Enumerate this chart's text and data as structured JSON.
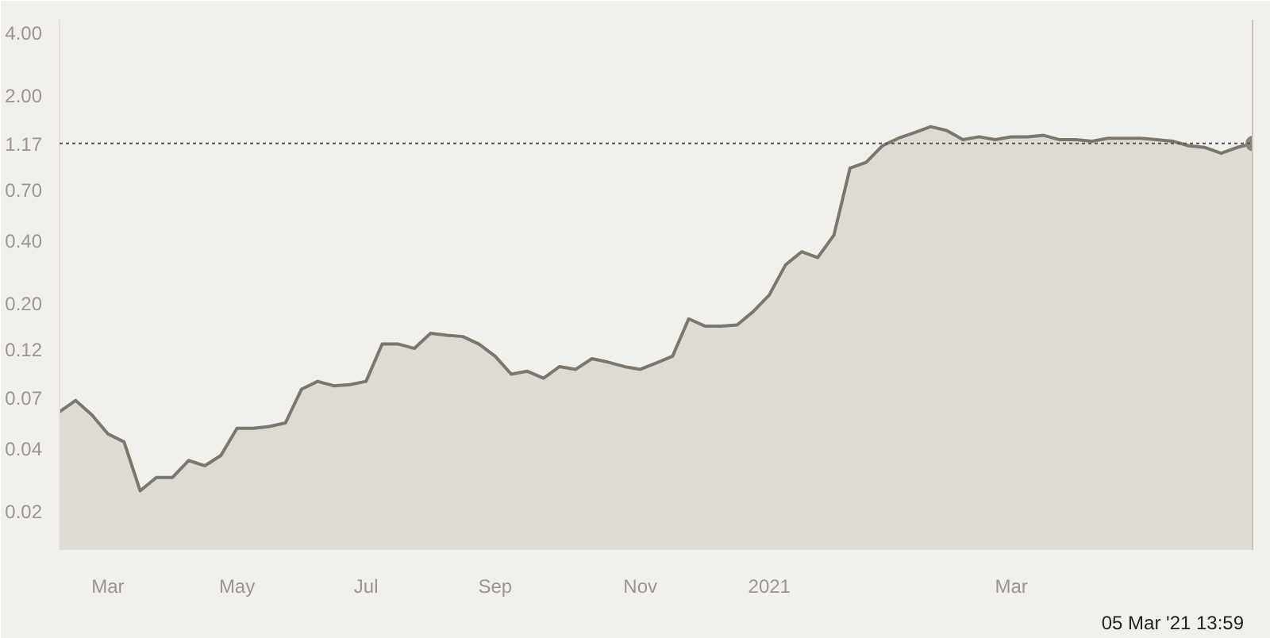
{
  "chart_data": {
    "type": "area",
    "categories": [
      null,
      null,
      null,
      "Mar",
      null,
      null,
      null,
      null,
      null,
      null,
      null,
      "May",
      null,
      null,
      null,
      null,
      null,
      null,
      null,
      "Jul",
      null,
      null,
      null,
      null,
      null,
      null,
      null,
      "Sep",
      null,
      null,
      null,
      null,
      null,
      null,
      null,
      null,
      "Nov",
      null,
      null,
      null,
      null,
      null,
      null,
      null,
      "2021",
      null,
      null,
      null,
      null,
      null,
      null,
      null,
      null,
      null,
      null,
      null,
      null,
      null,
      null,
      "Mar",
      null,
      null,
      null,
      null,
      null,
      null,
      null,
      null,
      null,
      null,
      null,
      null,
      null,
      null,
      null
    ],
    "series": [
      {
        "color": "#7d766b",
        "values": [
          0.06,
          0.068,
          0.058,
          0.047,
          0.043,
          0.025,
          0.029,
          0.029,
          0.035,
          0.033,
          0.037,
          0.05,
          0.05,
          0.051,
          0.053,
          0.077,
          0.084,
          0.08,
          0.081,
          0.084,
          0.127,
          0.127,
          0.121,
          0.143,
          0.14,
          0.138,
          0.127,
          0.111,
          0.091,
          0.094,
          0.087,
          0.099,
          0.096,
          0.108,
          0.104,
          0.099,
          0.096,
          0.103,
          0.111,
          0.168,
          0.155,
          0.155,
          0.157,
          0.182,
          0.219,
          0.305,
          0.353,
          0.331,
          0.424,
          0.89,
          0.95,
          1.14,
          1.24,
          1.32,
          1.41,
          1.35,
          1.22,
          1.26,
          1.22,
          1.26,
          1.26,
          1.28,
          1.22,
          1.22,
          1.2,
          1.24,
          1.24,
          1.24,
          1.22,
          1.2,
          1.14,
          1.12,
          1.05,
          1.12,
          1.17
        ]
      }
    ],
    "log": true,
    "ylim": [
      0.013,
      4.6
    ],
    "yticks": [
      {
        "value": 4,
        "label": "4.00"
      },
      {
        "value": 2,
        "label": "2.00"
      },
      {
        "value": 0.7,
        "label": "0.70"
      },
      {
        "value": 0.4,
        "label": "0.40"
      },
      {
        "value": 0.2,
        "label": "0.20"
      },
      0.12,
      0.07,
      0.04,
      0.02
    ],
    "grid": false,
    "ref_lines": [
      {
        "axis": "y",
        "value": 1.17,
        "label": "1.17",
        "color": "#555555",
        "line_style": "dotted"
      }
    ],
    "annotations": [
      "05 Mar '21 13:59"
    ]
  }
}
